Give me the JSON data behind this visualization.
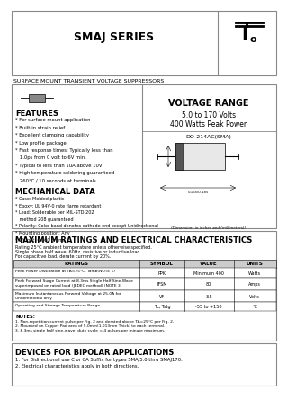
{
  "title": "SMAJ SERIES",
  "subtitle": "SURFACE MOUNT TRANSIENT VOLTAGE SUPPRESSORS",
  "voltage_range_title": "VOLTAGE RANGE",
  "voltage_range": "5.0 to 170 Volts",
  "power": "400 Watts Peak Power",
  "features_title": "FEATURES",
  "features": [
    "* For surface mount application",
    "* Built-in strain relief",
    "* Excellent clamping capability",
    "* Low profile package",
    "* Fast response times: Typically less than",
    "   1.0ps from 0 volt to 6V min.",
    "* Typical to less than 1uA above 10V",
    "* High temperature soldering guaranteed",
    "   260°C / 10 seconds at terminals"
  ],
  "mech_title": "MECHANICAL DATA",
  "mech": [
    "* Case: Molded plastic",
    "* Epoxy: UL 94V-0 rate flame retardant",
    "* Lead: Solderable per MIL-STD-202",
    "   method 208 guaranteed",
    "* Polarity: Color band denotes cathode end except Unidirectional",
    "* Mounting position: Any",
    "* Weight: 0.060 grams"
  ],
  "ratings_title": "MAXIMUM RATINGS AND ELECTRICAL CHARACTERISTICS",
  "ratings_note1": "Rating 25°C ambient temperature unless otherwise specified.",
  "ratings_note2": "Single phase half wave, 60Hz, resistive or inductive load.",
  "ratings_note3": "For capacitive load, derate current by 20%.",
  "table_headers": [
    "RATINGS",
    "SYMBOL",
    "VALUE",
    "UNITS"
  ],
  "table_rows": [
    [
      "Peak Power Dissipation at TA=25°C, Tamb(NOTE 1)",
      "PPK",
      "Minimum 400",
      "Watts"
    ],
    [
      "Peak Forward Surge Current at 8.3ms Single Half Sine-Wave\nsuperimposed on rated load (JEDEC method) (NOTE 3)",
      "IFSM",
      "80",
      "Amps"
    ],
    [
      "Maximum Instantaneous Forward Voltage at 25.0A for\nUnidirectional only",
      "VF",
      "3.5",
      "Volts"
    ],
    [
      "Operating and Storage Temperature Range",
      "TL, Tstg",
      "-55 to +150",
      "°C"
    ]
  ],
  "notes_title": "NOTES:",
  "notes": [
    "1. Non-repetition current pulse per Fig. 2 and derated above TA=25°C per Fig. 2.",
    "2. Mounted on Copper Pad area of 5.0mm(1.013mm Thick) to each terminal.",
    "3. 8.3ms single half sine-wave, duty cycle = 4 pulses per minute maximum."
  ],
  "bipolar_title": "DEVICES FOR BIPOLAR APPLICATIONS",
  "bipolar": [
    "1. For Bidirectional use C or CA Suffix for types SMAJ5.0 thru SMAJ170.",
    "2. Electrical characteristics apply in both directions."
  ],
  "diode_label": "DO-214AC(SMA)",
  "dim_note": "(Dimensions in inches and (millimeters))",
  "bg_color": "#ffffff",
  "border_color": "#999999",
  "text_color": "#000000"
}
